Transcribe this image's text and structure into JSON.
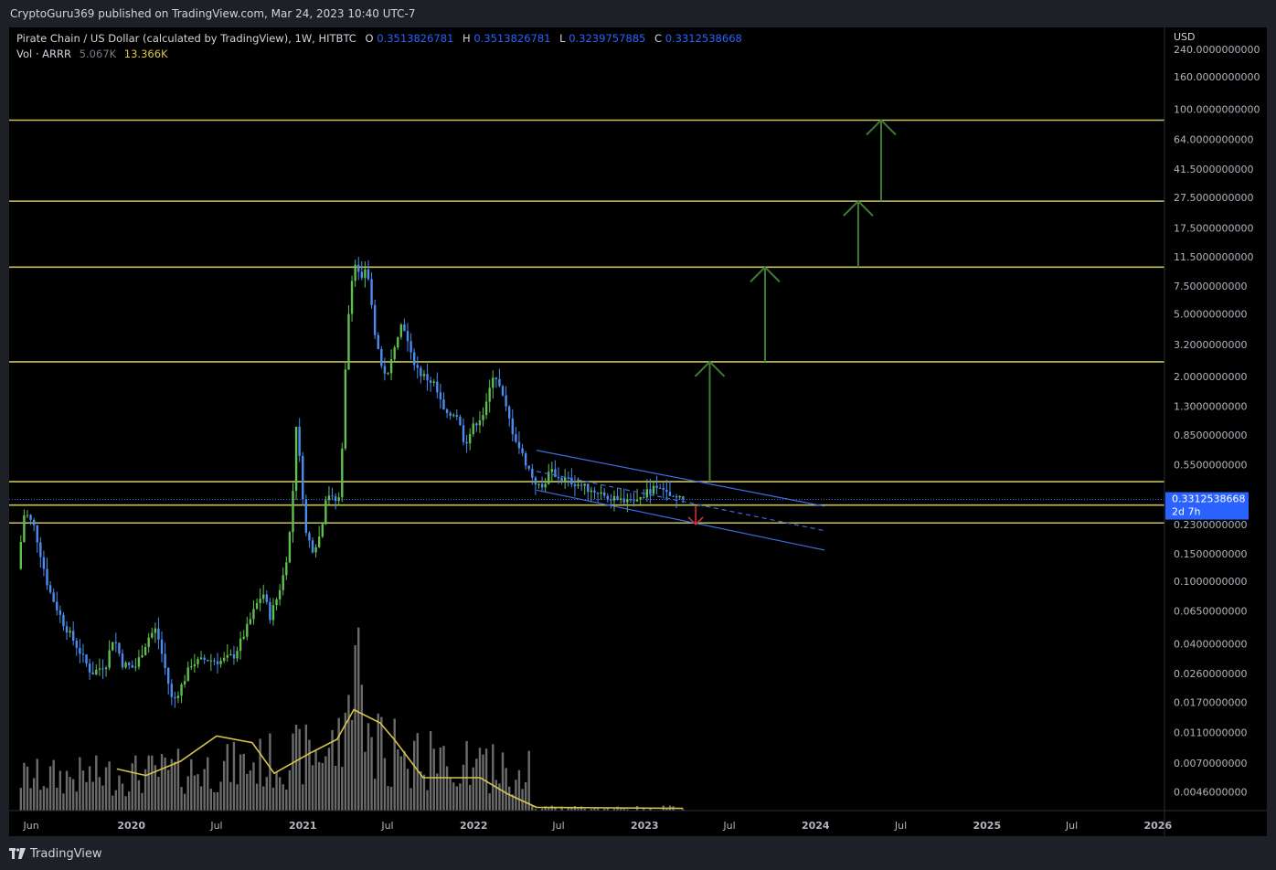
{
  "header": {
    "published": "CryptoGuru369 published on TradingView.com, Mar 24, 2023 10:40 UTC-7"
  },
  "legend": {
    "symbol": "Pirate Chain / US Dollar (calculated by TradingView), 1W, HITBTC",
    "o_label": "O",
    "o_value": "0.3513826781",
    "h_label": "H",
    "h_value": "0.3513826781",
    "l_label": "L",
    "l_value": "0.3239757885",
    "c_label": "C",
    "c_value": "0.3312538668",
    "vol_label": "Vol · ARRR",
    "vol_value": "5.067K",
    "vol_ma": "13.366K"
  },
  "price_axis": {
    "currency": "USD",
    "current_price": "0.3312538668",
    "countdown": "2d 7h"
  },
  "footer": {
    "brand": "TradingView"
  },
  "colors": {
    "up": "#5fbf4f",
    "down": "#4a8cf0",
    "level": "#c9c25a",
    "target_arrow": "#3f7a34",
    "down_arrow": "#d93636",
    "channel": "#3d6de0",
    "volume": "#6b6b6b",
    "volume_ma": "#d8c34a",
    "price_badge": "#2962ff"
  },
  "chart_data": {
    "type": "candlestick",
    "title": "Pirate Chain / US Dollar (calculated by TradingView), 1W, HITBTC",
    "y_scale": "log",
    "y_unit": "USD",
    "ylim": [
      0.0035,
      330
    ],
    "y_ticks": [
      {
        "value": 240,
        "label": "240.0000000000"
      },
      {
        "value": 160,
        "label": "160.0000000000"
      },
      {
        "value": 100,
        "label": "100.0000000000"
      },
      {
        "value": 64,
        "label": "64.0000000000"
      },
      {
        "value": 41.5,
        "label": "41.5000000000"
      },
      {
        "value": 27.5,
        "label": "27.5000000000"
      },
      {
        "value": 17.5,
        "label": "17.5000000000"
      },
      {
        "value": 11.5,
        "label": "11.5000000000"
      },
      {
        "value": 7.5,
        "label": "7.5000000000"
      },
      {
        "value": 5.0,
        "label": "5.0000000000"
      },
      {
        "value": 3.2,
        "label": "3.2000000000"
      },
      {
        "value": 2.0,
        "label": "2.0000000000"
      },
      {
        "value": 1.3,
        "label": "1.3000000000"
      },
      {
        "value": 0.85,
        "label": "0.8500000000"
      },
      {
        "value": 0.55,
        "label": "0.5500000000"
      },
      {
        "value": 0.23,
        "label": "0.2300000000"
      },
      {
        "value": 0.15,
        "label": "0.1500000000"
      },
      {
        "value": 0.1,
        "label": "0.1000000000"
      },
      {
        "value": 0.065,
        "label": "0.0650000000"
      },
      {
        "value": 0.04,
        "label": "0.0400000000"
      },
      {
        "value": 0.026,
        "label": "0.0260000000"
      },
      {
        "value": 0.017,
        "label": "0.0170000000"
      },
      {
        "value": 0.011,
        "label": "0.0110000000"
      },
      {
        "value": 0.007,
        "label": "0.0070000000"
      },
      {
        "value": 0.0046,
        "label": "0.0046000000"
      }
    ],
    "x_range": [
      "2019-04-15",
      "2026-01-15"
    ],
    "x_ticks": [
      {
        "date": "2019-06-01",
        "label": "Jun"
      },
      {
        "date": "2020-01-01",
        "label": "2020"
      },
      {
        "date": "2020-07-01",
        "label": "Jul"
      },
      {
        "date": "2021-01-01",
        "label": "2021"
      },
      {
        "date": "2021-07-01",
        "label": "Jul"
      },
      {
        "date": "2022-01-01",
        "label": "2022"
      },
      {
        "date": "2022-07-01",
        "label": "Jul"
      },
      {
        "date": "2023-01-01",
        "label": "2023"
      },
      {
        "date": "2023-07-01",
        "label": "Jul"
      },
      {
        "date": "2024-01-01",
        "label": "2024"
      },
      {
        "date": "2024-07-01",
        "label": "Jul"
      },
      {
        "date": "2025-01-01",
        "label": "2025"
      },
      {
        "date": "2025-07-01",
        "label": "Jul"
      },
      {
        "date": "2026-01-01",
        "label": "2026"
      }
    ],
    "price_path": [
      [
        "2019-05-10",
        0.12
      ],
      [
        "2019-05-25",
        0.28
      ],
      [
        "2019-06-15",
        0.22
      ],
      [
        "2019-07-15",
        0.09
      ],
      [
        "2019-08-15",
        0.055
      ],
      [
        "2019-09-15",
        0.038
      ],
      [
        "2019-10-15",
        0.026
      ],
      [
        "2019-11-15",
        0.03
      ],
      [
        "2019-12-01",
        0.045
      ],
      [
        "2019-12-20",
        0.03
      ],
      [
        "2020-01-15",
        0.028
      ],
      [
        "2020-02-15",
        0.045
      ],
      [
        "2020-03-01",
        0.05
      ],
      [
        "2020-03-20",
        0.028
      ],
      [
        "2020-04-05",
        0.017
      ],
      [
        "2020-04-25",
        0.022
      ],
      [
        "2020-05-15",
        0.03
      ],
      [
        "2020-06-15",
        0.032
      ],
      [
        "2020-07-15",
        0.031
      ],
      [
        "2020-08-15",
        0.034
      ],
      [
        "2020-09-10",
        0.05
      ],
      [
        "2020-09-30",
        0.07
      ],
      [
        "2020-10-15",
        0.085
      ],
      [
        "2020-10-30",
        0.06
      ],
      [
        "2020-11-15",
        0.08
      ],
      [
        "2020-12-01",
        0.12
      ],
      [
        "2020-12-15",
        0.25
      ],
      [
        "2020-12-25",
        1.0
      ],
      [
        "2021-01-05",
        0.45
      ],
      [
        "2021-01-15",
        0.2
      ],
      [
        "2021-01-30",
        0.16
      ],
      [
        "2021-02-15",
        0.2
      ],
      [
        "2021-02-28",
        0.38
      ],
      [
        "2021-03-15",
        0.32
      ],
      [
        "2021-03-28",
        0.34
      ],
      [
        "2021-04-10",
        2.5
      ],
      [
        "2021-04-20",
        8.0
      ],
      [
        "2021-05-01",
        10.5
      ],
      [
        "2021-05-15",
        8.0
      ],
      [
        "2021-05-25",
        10.0
      ],
      [
        "2021-06-10",
        4.0
      ],
      [
        "2021-06-25",
        2.3
      ],
      [
        "2021-07-10",
        2.0
      ],
      [
        "2021-07-25",
        3.5
      ],
      [
        "2021-08-10",
        4.5
      ],
      [
        "2021-08-25",
        2.8
      ],
      [
        "2021-09-15",
        2.1
      ],
      [
        "2021-10-15",
        1.8
      ],
      [
        "2021-11-10",
        1.1
      ],
      [
        "2021-12-01",
        1.2
      ],
      [
        "2021-12-20",
        0.75
      ],
      [
        "2022-01-10",
        1.0
      ],
      [
        "2022-02-01",
        1.2
      ],
      [
        "2022-02-20",
        2.2
      ],
      [
        "2022-03-10",
        1.5
      ],
      [
        "2022-04-01",
        0.9
      ],
      [
        "2022-04-20",
        0.65
      ],
      [
        "2022-05-15",
        0.45
      ],
      [
        "2022-06-01",
        0.38
      ],
      [
        "2022-06-20",
        0.5
      ],
      [
        "2022-07-15",
        0.45
      ],
      [
        "2022-08-15",
        0.42
      ],
      [
        "2022-09-15",
        0.38
      ],
      [
        "2022-10-15",
        0.36
      ],
      [
        "2022-11-10",
        0.32
      ],
      [
        "2022-12-01",
        0.34
      ],
      [
        "2022-12-20",
        0.32
      ],
      [
        "2023-01-10",
        0.36
      ],
      [
        "2023-02-01",
        0.4
      ],
      [
        "2023-02-20",
        0.36
      ],
      [
        "2023-03-10",
        0.34
      ],
      [
        "2023-03-24",
        0.3312538668
      ]
    ],
    "volume_ma_path": [
      [
        "2019-12-01",
        0.38
      ],
      [
        "2020-02-01",
        0.32
      ],
      [
        "2020-04-15",
        0.45
      ],
      [
        "2020-07-01",
        0.68
      ],
      [
        "2020-09-15",
        0.62
      ],
      [
        "2020-11-01",
        0.34
      ],
      [
        "2021-01-15",
        0.52
      ],
      [
        "2021-03-15",
        0.65
      ],
      [
        "2021-04-20",
        0.92
      ],
      [
        "2021-06-15",
        0.8
      ],
      [
        "2021-07-15",
        0.65
      ],
      [
        "2021-09-15",
        0.3
      ],
      [
        "2021-12-01",
        0.3
      ],
      [
        "2022-01-15",
        0.3
      ],
      [
        "2022-03-15",
        0.15
      ],
      [
        "2022-05-15",
        0.03
      ],
      [
        "2023-03-24",
        0.02
      ]
    ],
    "horizontal_levels": [
      85,
      26,
      9.9,
      2.48,
      0.43,
      0.305,
      0.235
    ],
    "channel": {
      "upper": [
        [
          "2022-05-15",
          0.68
        ],
        [
          "2024-01-20",
          0.3
        ]
      ],
      "middle_dashed": [
        [
          "2022-05-15",
          0.5
        ],
        [
          "2024-01-20",
          0.21
        ]
      ],
      "lower": [
        [
          "2022-05-15",
          0.38
        ],
        [
          "2024-01-20",
          0.158
        ]
      ]
    },
    "target_arrows": [
      {
        "date": "2023-05-20",
        "from": 0.43,
        "to": 2.48
      },
      {
        "date": "2023-09-15",
        "from": 2.48,
        "to": 9.9
      },
      {
        "date": "2024-04-01",
        "from": 9.9,
        "to": 26
      },
      {
        "date": "2024-05-20",
        "from": 26,
        "to": 85
      }
    ],
    "down_arrow": {
      "date": "2023-04-20",
      "from": 0.3,
      "to": 0.23
    }
  }
}
